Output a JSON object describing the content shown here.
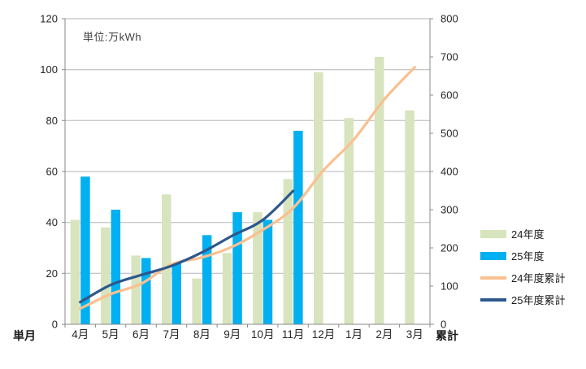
{
  "annotation": "単位:万kWh",
  "x_axis": {
    "title_left": "単月",
    "title_right": "累計"
  },
  "colors": {
    "fy24_bar": "#d7e4bd",
    "fy25_bar": "#00b0f0",
    "fy24_cum_line": "#fac090",
    "fy25_cum_line": "#2e578c",
    "gridline": "#b5b5b5",
    "axis": "#898989",
    "label_text": "#262626"
  },
  "chart_data": {
    "type": "bar+line",
    "categories": [
      "4月",
      "5月",
      "6月",
      "7月",
      "8月",
      "9月",
      "10月",
      "11月",
      "12月",
      "1月",
      "2月",
      "3月"
    ],
    "series": [
      {
        "name": "24年度",
        "type": "bar",
        "axis": "left",
        "color": "#d7e4bd",
        "values": [
          41,
          38,
          27,
          51,
          18,
          28,
          44,
          57,
          99,
          81,
          105,
          84
        ]
      },
      {
        "name": "25年度",
        "type": "bar",
        "axis": "left",
        "color": "#00b0f0",
        "values": [
          58,
          45,
          26,
          24,
          35,
          44,
          41,
          76,
          null,
          null,
          null,
          null
        ]
      },
      {
        "name": "24年度累計",
        "type": "line",
        "axis": "right",
        "color": "#fac090",
        "values": [
          41,
          79,
          106,
          157,
          175,
          203,
          247,
          304,
          403,
          484,
          589,
          673
        ]
      },
      {
        "name": "25年度累計",
        "type": "line",
        "axis": "right",
        "color": "#2e578c",
        "values": [
          58,
          103,
          129,
          153,
          188,
          232,
          273,
          349,
          null,
          null,
          null,
          null
        ]
      }
    ],
    "left_axis": {
      "min": 0,
      "max": 120,
      "step": 20,
      "ticks": [
        0,
        20,
        40,
        60,
        80,
        100,
        120
      ]
    },
    "right_axis": {
      "min": 0,
      "max": 800,
      "step": 100,
      "ticks": [
        0,
        100,
        200,
        300,
        400,
        500,
        600,
        700,
        800
      ]
    },
    "grid": true,
    "legend_position": "right"
  }
}
